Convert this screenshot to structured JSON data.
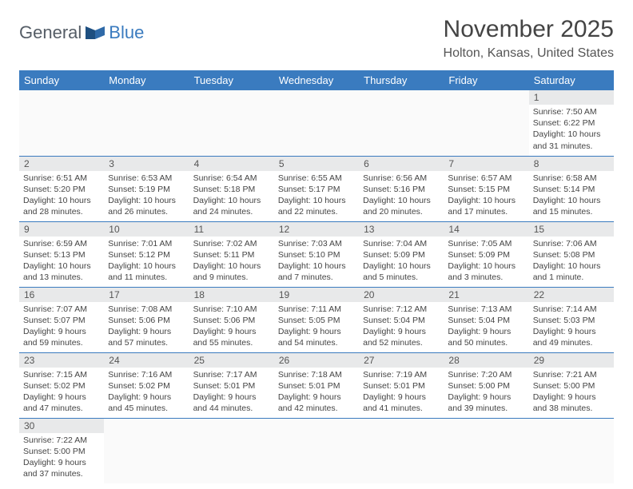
{
  "logo": {
    "general": "General",
    "blue": "Blue"
  },
  "title": "November 2025",
  "location": "Holton, Kansas, United States",
  "weekdays": [
    "Sunday",
    "Monday",
    "Tuesday",
    "Wednesday",
    "Thursday",
    "Friday",
    "Saturday"
  ],
  "colors": {
    "headerBg": "#3a7bbf",
    "headerText": "#ffffff",
    "dayNumBg": "#e8e9ea",
    "border": "#3a7bbf"
  },
  "weeks": [
    [
      null,
      null,
      null,
      null,
      null,
      null,
      {
        "num": "1",
        "sunrise": "Sunrise: 7:50 AM",
        "sunset": "Sunset: 6:22 PM",
        "daylight": "Daylight: 10 hours and 31 minutes."
      }
    ],
    [
      {
        "num": "2",
        "sunrise": "Sunrise: 6:51 AM",
        "sunset": "Sunset: 5:20 PM",
        "daylight": "Daylight: 10 hours and 28 minutes."
      },
      {
        "num": "3",
        "sunrise": "Sunrise: 6:53 AM",
        "sunset": "Sunset: 5:19 PM",
        "daylight": "Daylight: 10 hours and 26 minutes."
      },
      {
        "num": "4",
        "sunrise": "Sunrise: 6:54 AM",
        "sunset": "Sunset: 5:18 PM",
        "daylight": "Daylight: 10 hours and 24 minutes."
      },
      {
        "num": "5",
        "sunrise": "Sunrise: 6:55 AM",
        "sunset": "Sunset: 5:17 PM",
        "daylight": "Daylight: 10 hours and 22 minutes."
      },
      {
        "num": "6",
        "sunrise": "Sunrise: 6:56 AM",
        "sunset": "Sunset: 5:16 PM",
        "daylight": "Daylight: 10 hours and 20 minutes."
      },
      {
        "num": "7",
        "sunrise": "Sunrise: 6:57 AM",
        "sunset": "Sunset: 5:15 PM",
        "daylight": "Daylight: 10 hours and 17 minutes."
      },
      {
        "num": "8",
        "sunrise": "Sunrise: 6:58 AM",
        "sunset": "Sunset: 5:14 PM",
        "daylight": "Daylight: 10 hours and 15 minutes."
      }
    ],
    [
      {
        "num": "9",
        "sunrise": "Sunrise: 6:59 AM",
        "sunset": "Sunset: 5:13 PM",
        "daylight": "Daylight: 10 hours and 13 minutes."
      },
      {
        "num": "10",
        "sunrise": "Sunrise: 7:01 AM",
        "sunset": "Sunset: 5:12 PM",
        "daylight": "Daylight: 10 hours and 11 minutes."
      },
      {
        "num": "11",
        "sunrise": "Sunrise: 7:02 AM",
        "sunset": "Sunset: 5:11 PM",
        "daylight": "Daylight: 10 hours and 9 minutes."
      },
      {
        "num": "12",
        "sunrise": "Sunrise: 7:03 AM",
        "sunset": "Sunset: 5:10 PM",
        "daylight": "Daylight: 10 hours and 7 minutes."
      },
      {
        "num": "13",
        "sunrise": "Sunrise: 7:04 AM",
        "sunset": "Sunset: 5:09 PM",
        "daylight": "Daylight: 10 hours and 5 minutes."
      },
      {
        "num": "14",
        "sunrise": "Sunrise: 7:05 AM",
        "sunset": "Sunset: 5:09 PM",
        "daylight": "Daylight: 10 hours and 3 minutes."
      },
      {
        "num": "15",
        "sunrise": "Sunrise: 7:06 AM",
        "sunset": "Sunset: 5:08 PM",
        "daylight": "Daylight: 10 hours and 1 minute."
      }
    ],
    [
      {
        "num": "16",
        "sunrise": "Sunrise: 7:07 AM",
        "sunset": "Sunset: 5:07 PM",
        "daylight": "Daylight: 9 hours and 59 minutes."
      },
      {
        "num": "17",
        "sunrise": "Sunrise: 7:08 AM",
        "sunset": "Sunset: 5:06 PM",
        "daylight": "Daylight: 9 hours and 57 minutes."
      },
      {
        "num": "18",
        "sunrise": "Sunrise: 7:10 AM",
        "sunset": "Sunset: 5:06 PM",
        "daylight": "Daylight: 9 hours and 55 minutes."
      },
      {
        "num": "19",
        "sunrise": "Sunrise: 7:11 AM",
        "sunset": "Sunset: 5:05 PM",
        "daylight": "Daylight: 9 hours and 54 minutes."
      },
      {
        "num": "20",
        "sunrise": "Sunrise: 7:12 AM",
        "sunset": "Sunset: 5:04 PM",
        "daylight": "Daylight: 9 hours and 52 minutes."
      },
      {
        "num": "21",
        "sunrise": "Sunrise: 7:13 AM",
        "sunset": "Sunset: 5:04 PM",
        "daylight": "Daylight: 9 hours and 50 minutes."
      },
      {
        "num": "22",
        "sunrise": "Sunrise: 7:14 AM",
        "sunset": "Sunset: 5:03 PM",
        "daylight": "Daylight: 9 hours and 49 minutes."
      }
    ],
    [
      {
        "num": "23",
        "sunrise": "Sunrise: 7:15 AM",
        "sunset": "Sunset: 5:02 PM",
        "daylight": "Daylight: 9 hours and 47 minutes."
      },
      {
        "num": "24",
        "sunrise": "Sunrise: 7:16 AM",
        "sunset": "Sunset: 5:02 PM",
        "daylight": "Daylight: 9 hours and 45 minutes."
      },
      {
        "num": "25",
        "sunrise": "Sunrise: 7:17 AM",
        "sunset": "Sunset: 5:01 PM",
        "daylight": "Daylight: 9 hours and 44 minutes."
      },
      {
        "num": "26",
        "sunrise": "Sunrise: 7:18 AM",
        "sunset": "Sunset: 5:01 PM",
        "daylight": "Daylight: 9 hours and 42 minutes."
      },
      {
        "num": "27",
        "sunrise": "Sunrise: 7:19 AM",
        "sunset": "Sunset: 5:01 PM",
        "daylight": "Daylight: 9 hours and 41 minutes."
      },
      {
        "num": "28",
        "sunrise": "Sunrise: 7:20 AM",
        "sunset": "Sunset: 5:00 PM",
        "daylight": "Daylight: 9 hours and 39 minutes."
      },
      {
        "num": "29",
        "sunrise": "Sunrise: 7:21 AM",
        "sunset": "Sunset: 5:00 PM",
        "daylight": "Daylight: 9 hours and 38 minutes."
      }
    ],
    [
      {
        "num": "30",
        "sunrise": "Sunrise: 7:22 AM",
        "sunset": "Sunset: 5:00 PM",
        "daylight": "Daylight: 9 hours and 37 minutes."
      },
      null,
      null,
      null,
      null,
      null,
      null
    ]
  ]
}
